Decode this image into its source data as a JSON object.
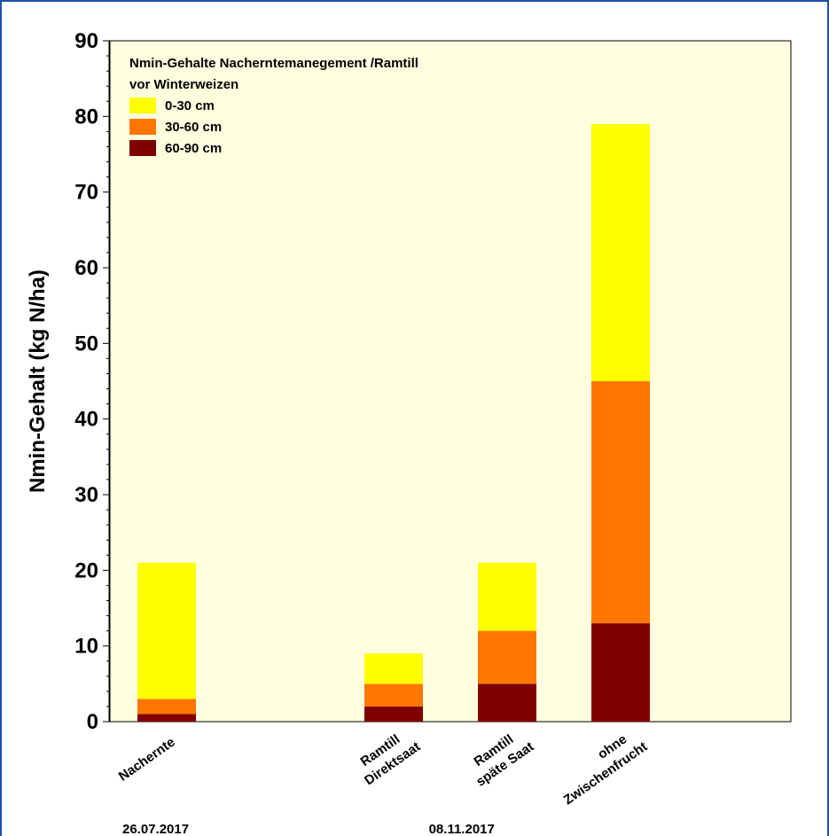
{
  "chart_data": {
    "type": "bar",
    "stacked": true,
    "title": "Nmin-Gehalte Nacherntemanegement /Ramtill",
    "subtitle": "vor Winterweizen",
    "ylabel": "Nmin-Gehalt  (kg N/ha)",
    "xlabel": "",
    "ylim": [
      0,
      90
    ],
    "yticks": [
      "0",
      "10",
      "20",
      "30",
      "40",
      "50",
      "60",
      "70",
      "80",
      "90"
    ],
    "categories": [
      {
        "line1": "Nachernte",
        "line2": "",
        "slot": 1
      },
      {
        "line1": "Ramtill",
        "line2": "Direktsaat",
        "slot": 3
      },
      {
        "line1": "Ramtill",
        "line2": "späte Saat",
        "slot": 4
      },
      {
        "line1": "ohne",
        "line2": "Zwischenfrucht",
        "slot": 5
      }
    ],
    "date_labels": [
      {
        "text": "26.07.2017",
        "slot": 1
      },
      {
        "text": "08.11.2017",
        "slot": 3.7
      }
    ],
    "series": [
      {
        "name": "60-90 cm",
        "color": "#800000",
        "values": [
          1,
          2,
          5,
          13
        ]
      },
      {
        "name": "30-60 cm",
        "color": "#ff7700",
        "values": [
          2,
          3,
          7,
          32
        ]
      },
      {
        "name": "0-30 cm",
        "color": "#ffff00",
        "values": [
          18,
          4,
          9,
          34
        ]
      }
    ],
    "legend_order": [
      "0-30 cm",
      "30-60 cm",
      "60-90 cm"
    ],
    "legend_position": "top-left",
    "grid": false,
    "plot_background": "#ffffe0",
    "frame_border_color": "#1f4fa8"
  }
}
